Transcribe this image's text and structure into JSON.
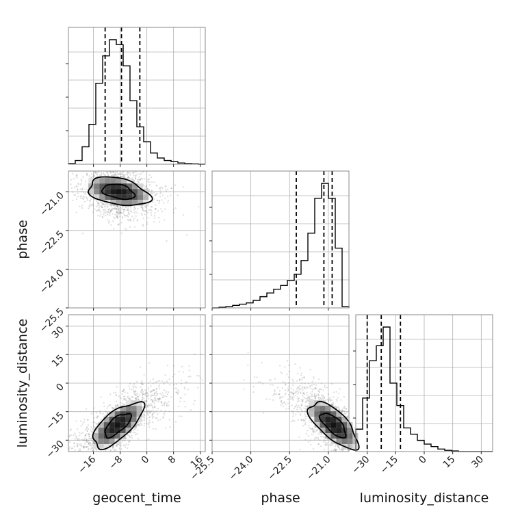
{
  "chart_data": {
    "type": "corner",
    "parameters": [
      "geocent_time",
      "phase",
      "luminosity_distance"
    ],
    "ranges": {
      "geocent_time": [
        -23.5,
        17.5
      ],
      "phase": [
        -25.5,
        -20.2
      ],
      "luminosity_distance": [
        -36,
        36
      ]
    },
    "ticks": {
      "geocent_time": [
        "-16",
        "-8",
        "0",
        "8",
        "16"
      ],
      "phase": [
        "-25.5",
        "-24.0",
        "-22.5",
        "-21.0"
      ],
      "luminosity_distance": [
        "-30",
        "-15",
        "0",
        "15",
        "30"
      ]
    },
    "grid": true,
    "histograms": {
      "geocent_time": {
        "bin_edges": [
          -23.5,
          -21.45,
          -19.4,
          -17.35,
          -15.3,
          -13.25,
          -11.2,
          -9.15,
          -7.1,
          -5.05,
          -3.0,
          -0.95,
          1.1,
          3.15,
          5.2,
          7.25,
          9.3,
          11.35,
          13.4,
          15.45,
          17.5
        ],
        "counts": [
          0.5,
          3,
          14,
          32,
          65,
          87,
          100,
          96,
          79,
          51,
          30,
          18,
          9,
          5,
          3,
          2,
          1,
          0.5,
          0.3,
          0
        ],
        "quantiles": [
          -12.5,
          -7.6,
          -2.1
        ]
      },
      "phase": {
        "bin_edges": [
          -25.5,
          -25.235,
          -24.97,
          -24.705,
          -24.44,
          -24.175,
          -23.91,
          -23.645,
          -23.38,
          -23.115,
          -22.85,
          -22.585,
          -22.32,
          -22.055,
          -21.79,
          -21.525,
          -21.26,
          -20.995,
          -20.73,
          -20.465,
          -20.2
        ],
        "counts": [
          0,
          0.5,
          1,
          2,
          3,
          4,
          6,
          9,
          12,
          15,
          18,
          22,
          27,
          38,
          60,
          88,
          100,
          88,
          48,
          1
        ],
        "quantiles": [
          -22.24,
          -21.17,
          -20.85
        ]
      },
      "luminosity_distance": {
        "bin_edges": [
          -36,
          -32.4,
          -28.8,
          -25.2,
          -21.6,
          -18,
          -14.4,
          -10.8,
          -7.2,
          -3.6,
          0,
          3.6,
          7.2,
          10.8,
          14.4,
          18,
          21.6,
          25,
          28.8,
          32.4,
          36
        ],
        "counts": [
          18,
          43,
          73,
          85,
          100,
          55,
          37,
          19,
          14,
          9,
          6,
          4,
          2,
          1,
          0.5,
          0,
          0,
          0,
          0,
          0
        ],
        "quantiles": [
          -30.0,
          -22.6,
          -12.5
        ]
      }
    },
    "joint": {
      "phase_vs_geocent_time": {
        "peak": {
          "x": -8.5,
          "y": -21.0
        },
        "contour_levels": [
          "39%",
          "86%"
        ]
      },
      "luminosity_distance_vs_geocent_time": {
        "peak": {
          "x": -8.8,
          "y": -22.0
        },
        "contour_levels": [
          "39%",
          "86%"
        ]
      },
      "luminosity_distance_vs_phase": {
        "peak": {
          "x": -20.8,
          "y": -22.0
        },
        "contour_levels": [
          "39%",
          "86%"
        ]
      }
    },
    "colors": {
      "line": "#000000",
      "scatter": "#808080",
      "grid": "#b0b0b0",
      "frame": "#888888"
    }
  }
}
